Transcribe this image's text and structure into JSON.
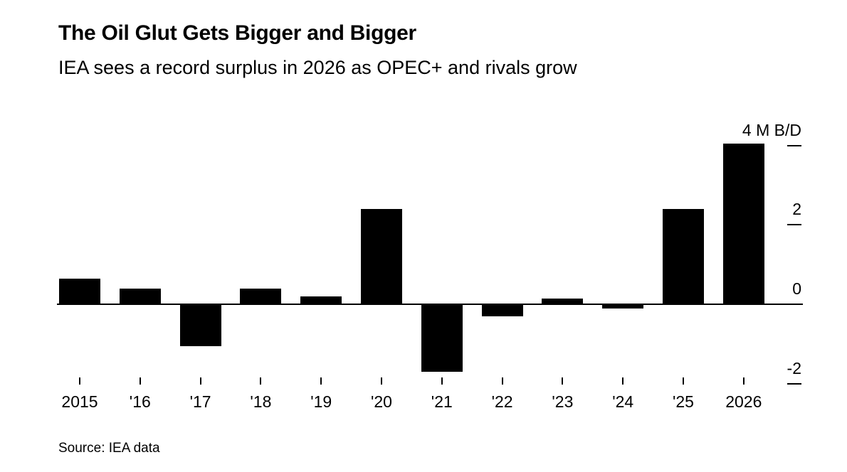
{
  "header": {
    "title": "The Oil Glut Gets Bigger and Bigger",
    "subtitle": "IEA sees a record surplus in 2026 as OPEC+ and rivals grow"
  },
  "chart_data": {
    "type": "bar",
    "title": "The Oil Glut Gets Bigger and Bigger",
    "subtitle": "IEA sees a record surplus in 2026 as OPEC+ and rivals grow",
    "categories": [
      "2015",
      "'16",
      "'17",
      "'18",
      "'19",
      "'20",
      "'21",
      "'22",
      "'23",
      "'24",
      "'25",
      "2026"
    ],
    "values": [
      0.65,
      0.4,
      -1.05,
      0.4,
      0.2,
      2.4,
      -1.7,
      -0.3,
      0.15,
      -0.1,
      2.4,
      4.05
    ],
    "xlabel": "",
    "ylabel": "M B/D",
    "y_ticks": [
      {
        "value": 4,
        "label": "4 M B/D"
      },
      {
        "value": 2,
        "label": "2"
      },
      {
        "value": 0,
        "label": "0"
      },
      {
        "value": -2,
        "label": "-2"
      }
    ],
    "ylim": [
      -2.6,
      4.3
    ],
    "bar_color": "#000000",
    "grid": false,
    "legend": "none"
  },
  "footer": {
    "source": "Source: IEA data"
  }
}
